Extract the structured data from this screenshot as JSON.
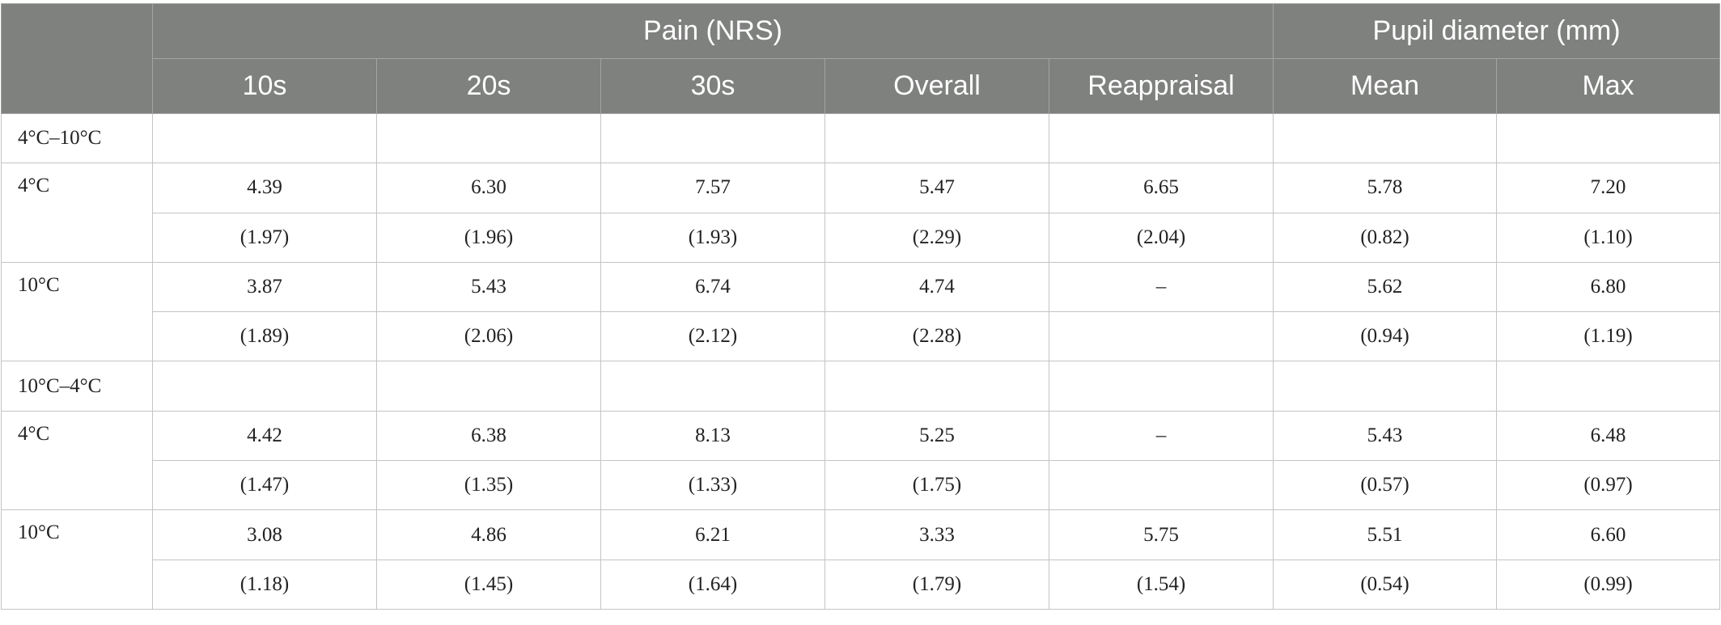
{
  "header": {
    "group_pain": "Pain (NRS)",
    "group_pupil": "Pupil diameter (mm)",
    "columns": [
      "10s",
      "20s",
      "30s",
      "Overall",
      "Reappraisal",
      "Mean",
      "Max"
    ]
  },
  "sections": [
    {
      "label": "4°C–10°C",
      "rows": [
        {
          "label": "4°C",
          "means": [
            "4.39",
            "6.30",
            "7.57",
            "5.47",
            "6.65",
            "5.78",
            "7.20"
          ],
          "sds": [
            "(1.97)",
            "(1.96)",
            "(1.93)",
            "(2.29)",
            "(2.04)",
            "(0.82)",
            "(1.10)"
          ]
        },
        {
          "label": "10°C",
          "means": [
            "3.87",
            "5.43",
            "6.74",
            "4.74",
            "–",
            "5.62",
            "6.80"
          ],
          "sds": [
            "(1.89)",
            "(2.06)",
            "(2.12)",
            "(2.28)",
            "",
            "(0.94)",
            "(1.19)"
          ]
        }
      ]
    },
    {
      "label": "10°C–4°C",
      "rows": [
        {
          "label": "4°C",
          "means": [
            "4.42",
            "6.38",
            "8.13",
            "5.25",
            "–",
            "5.43",
            "6.48"
          ],
          "sds": [
            "(1.47)",
            "(1.35)",
            "(1.33)",
            "(1.75)",
            "",
            "(0.57)",
            "(0.97)"
          ]
        },
        {
          "label": "10°C",
          "means": [
            "3.08",
            "4.86",
            "6.21",
            "3.33",
            "5.75",
            "5.51",
            "6.60"
          ],
          "sds": [
            "(1.18)",
            "(1.45)",
            "(1.64)",
            "(1.79)",
            "(1.54)",
            "(0.54)",
            "(0.99)"
          ]
        }
      ]
    }
  ]
}
